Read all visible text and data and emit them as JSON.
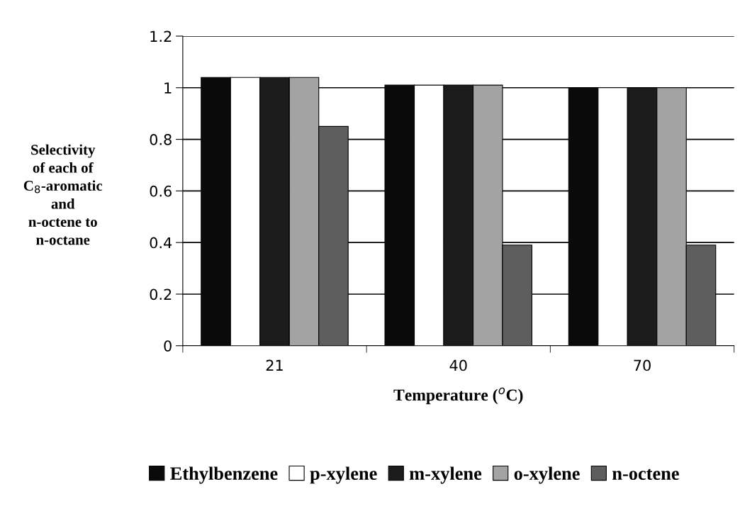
{
  "chart_data": {
    "type": "bar",
    "xlabel": "Temperature ($^{o}$C)",
    "ylabel": "Selectivity\nof each of\nC$_{8}$-aromatic\nand\nn-octene to\nn-octane",
    "categories": [
      "21",
      "40",
      "70"
    ],
    "series": [
      {
        "name": "Ethylbenzene",
        "color": "#0a0a0a",
        "values": [
          1.04,
          1.01,
          1.0
        ]
      },
      {
        "name": "p-xylene",
        "color": "#ffffff",
        "values": [
          1.04,
          1.01,
          1.0
        ]
      },
      {
        "name": "m-xylene",
        "color": "#1c1c1c",
        "values": [
          1.04,
          1.01,
          1.0
        ]
      },
      {
        "name": "o-xylene",
        "color": "#a3a3a3",
        "values": [
          1.04,
          1.01,
          1.0
        ]
      },
      {
        "name": "n-octene",
        "color": "#5e5e5e",
        "values": [
          0.85,
          0.39,
          0.39
        ]
      }
    ],
    "ylim": [
      0,
      1.2
    ],
    "yticks": [
      0,
      0.2,
      0.4,
      0.6,
      0.8,
      1,
      1.2
    ],
    "grid": "y",
    "legend": "bottom"
  }
}
